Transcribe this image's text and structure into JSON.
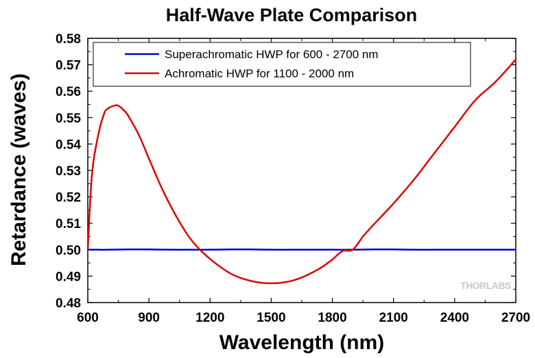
{
  "chart_data": {
    "type": "line",
    "title": "Half-Wave Plate Comparison",
    "xlabel": "Wavelength (nm)",
    "ylabel": "Retardance (waves)",
    "xlim": [
      600,
      2700
    ],
    "ylim": [
      0.48,
      0.58
    ],
    "xticks": [
      600,
      900,
      1200,
      1500,
      1800,
      2100,
      2400,
      2700
    ],
    "yticks": [
      0.48,
      0.49,
      0.5,
      0.51,
      0.52,
      0.53,
      0.54,
      0.55,
      0.56,
      0.57,
      0.58
    ],
    "ytick_labels": [
      "0.48",
      "0.49",
      "0.50",
      "0.51",
      "0.52",
      "0.53",
      "0.54",
      "0.55",
      "0.56",
      "0.57",
      "0.58"
    ],
    "grid": false,
    "legend_position": "top",
    "watermark": "THORLABS",
    "series": [
      {
        "name": "Superachromatic HWP for 600 - 2700 nm",
        "color": "#0000cc",
        "x": [
          600,
          650,
          700,
          800,
          900,
          1000,
          1100,
          1200,
          1300,
          1400,
          1500,
          1600,
          1700,
          1800,
          1900,
          2000,
          2100,
          2200,
          2300,
          2400,
          2500,
          2600,
          2700
        ],
        "y": [
          0.5,
          0.5,
          0.5,
          0.5001,
          0.5001,
          0.5,
          0.5,
          0.5,
          0.5001,
          0.5001,
          0.5,
          0.5,
          0.5,
          0.5,
          0.5,
          0.5001,
          0.5001,
          0.5,
          0.5,
          0.5,
          0.5,
          0.5,
          0.5
        ]
      },
      {
        "name": "Achromatic HWP for 1100 - 2000 nm",
        "color": "#dd0000",
        "x": [
          600,
          620,
          650,
          680,
          700,
          730,
          750,
          780,
          800,
          850,
          900,
          950,
          1000,
          1050,
          1100,
          1150,
          1200,
          1250,
          1300,
          1350,
          1400,
          1450,
          1500,
          1550,
          1600,
          1650,
          1700,
          1750,
          1800,
          1850,
          1900,
          1950,
          2000,
          2100,
          2200,
          2300,
          2400,
          2500,
          2600,
          2700
        ],
        "y": [
          0.5,
          0.528,
          0.543,
          0.5515,
          0.5535,
          0.5545,
          0.5545,
          0.5525,
          0.5505,
          0.5435,
          0.5345,
          0.5255,
          0.5175,
          0.5105,
          0.5045,
          0.5,
          0.4965,
          0.4935,
          0.491,
          0.4893,
          0.4882,
          0.4875,
          0.4873,
          0.4875,
          0.4882,
          0.4895,
          0.4913,
          0.4935,
          0.4963,
          0.4995,
          0.5,
          0.505,
          0.5093,
          0.5175,
          0.5265,
          0.5365,
          0.5465,
          0.5565,
          0.5635,
          0.572
        ]
      }
    ]
  }
}
